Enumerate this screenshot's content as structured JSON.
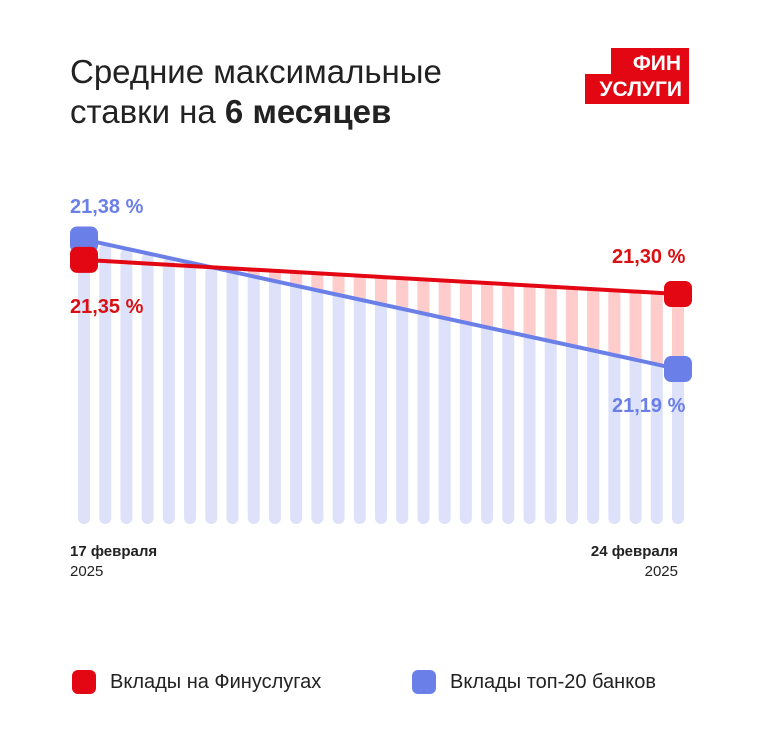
{
  "title": {
    "line1": "Средние максимальные",
    "line2_regular": "ставки на ",
    "line2_bold": "6 месяцев"
  },
  "logo": {
    "line1": "ФИН",
    "line2": "УСЛУГИ",
    "color": "#e30613"
  },
  "chart_data": {
    "type": "line",
    "x": [
      "17 февраля 2025",
      "24 февраля 2025"
    ],
    "x_labels": [
      {
        "date": "17 февраля",
        "year": "2025"
      },
      {
        "date": "24 февраля",
        "year": "2025"
      }
    ],
    "series": [
      {
        "name": "Вклады на Финуслугах",
        "values": [
          21.35,
          21.3
        ],
        "labels": [
          "21,35 %",
          "21,30 %"
        ],
        "color": "#e30613"
      },
      {
        "name": "Вклады топ-20 банков",
        "values": [
          21.38,
          21.19
        ],
        "labels": [
          "21,38 %",
          "21,19 %"
        ],
        "color": "#6b7fe8"
      }
    ],
    "background_bar_color": "#dde1fa",
    "gap_fill_color": "#ffcccc",
    "grid": false,
    "legend": "bottom"
  }
}
